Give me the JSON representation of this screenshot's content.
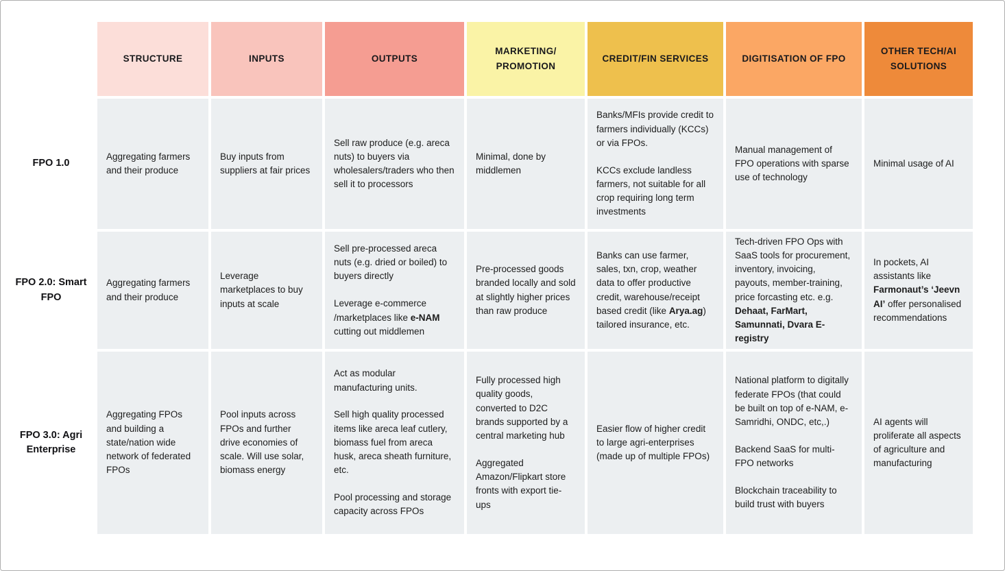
{
  "table": {
    "columns": [
      {
        "label": "STRUCTURE",
        "color": "#fcded9"
      },
      {
        "label": "INPUTS",
        "color": "#f9c4bc"
      },
      {
        "label": "OUTPUTS",
        "color": "#f59d92"
      },
      {
        "label": "MARKETING/\nPROMOTION",
        "color": "#faf3a6"
      },
      {
        "label": "CREDIT/FIN SERVICES",
        "color": "#eec04d"
      },
      {
        "label": "DIGITISATION OF FPO",
        "color": "#fba764"
      },
      {
        "label": "OTHER TECH/AI\nSOLUTIONS",
        "color": "#ee8a3a"
      }
    ],
    "rows": [
      {
        "label": "FPO 1.0",
        "cells": [
          [
            [
              {
                "t": "Aggregating farmers and their produce",
                "b": false
              }
            ]
          ],
          [
            [
              {
                "t": "Buy inputs from suppliers at fair prices",
                "b": false
              }
            ]
          ],
          [
            [
              {
                "t": "Sell raw produce (e.g. areca nuts) to buyers via wholesalers/traders who then sell it to processors",
                "b": false
              }
            ]
          ],
          [
            [
              {
                "t": "Minimal, done by middlemen",
                "b": false
              }
            ]
          ],
          [
            [
              {
                "t": "Banks/MFIs provide credit to farmers individually (KCCs) or via FPOs.",
                "b": false
              }
            ],
            [
              {
                "t": "KCCs exclude landless farmers, not suitable for all crop requiring long term investments",
                "b": false
              }
            ]
          ],
          [
            [
              {
                "t": "Manual management of FPO operations with sparse use of technology",
                "b": false
              }
            ]
          ],
          [
            [
              {
                "t": "Minimal usage of AI",
                "b": false
              }
            ]
          ]
        ]
      },
      {
        "label": "FPO 2.0: Smart FPO",
        "cells": [
          [
            [
              {
                "t": "Aggregating farmers and their produce",
                "b": false
              }
            ]
          ],
          [
            [
              {
                "t": "Leverage marketplaces to buy inputs at scale",
                "b": false
              }
            ]
          ],
          [
            [
              {
                "t": "Sell pre-processed areca nuts (e.g. dried or boiled) to buyers directly",
                "b": false
              }
            ],
            [
              {
                "t": "Leverage e-commerce /marketplaces like ",
                "b": false
              },
              {
                "t": "e-NAM",
                "b": true
              },
              {
                "t": " cutting out middlemen",
                "b": false
              }
            ]
          ],
          [
            [
              {
                "t": "Pre-processed goods branded locally and sold at slightly higher prices than raw produce",
                "b": false
              }
            ]
          ],
          [
            [
              {
                "t": "Banks can use farmer, sales, txn, crop, weather data to offer productive credit, warehouse/receipt based credit (like ",
                "b": false
              },
              {
                "t": "Arya.ag",
                "b": true
              },
              {
                "t": ") tailored insurance, etc.",
                "b": false
              }
            ]
          ],
          [
            [
              {
                "t": "Tech-driven FPO Ops with SaaS tools for procurement, inventory, invoicing, payouts, member-training, price forcasting etc. e.g. ",
                "b": false
              },
              {
                "t": "Dehaat, FarMart, Samunnati, Dvara E-registry",
                "b": true
              }
            ]
          ],
          [
            [
              {
                "t": "In pockets, AI assistants like ",
                "b": false
              },
              {
                "t": "Farmonaut’s ‘Jeevn AI’",
                "b": true
              },
              {
                "t": " offer personalised recommendations",
                "b": false
              }
            ]
          ]
        ]
      },
      {
        "label": "FPO 3.0: Agri Enterprise",
        "cells": [
          [
            [
              {
                "t": "Aggregating FPOs and building a state/nation wide network of federated FPOs",
                "b": false
              }
            ]
          ],
          [
            [
              {
                "t": "Pool inputs across FPOs and further drive economies of scale. Will use solar, biomass energy",
                "b": false
              }
            ]
          ],
          [
            [
              {
                "t": "Act as modular manufacturing units.",
                "b": false
              }
            ],
            [
              {
                "t": "Sell high quality processed items like areca leaf cutlery, biomass fuel from areca husk, areca sheath furniture, etc.",
                "b": false
              }
            ],
            [
              {
                "t": "Pool processing and storage capacity across FPOs",
                "b": false
              }
            ]
          ],
          [
            [
              {
                "t": "Fully processed high quality goods, converted to D2C brands supported by a central marketing hub",
                "b": false
              }
            ],
            [
              {
                "t": "Aggregated Amazon/Flipkart store fronts with export tie-ups",
                "b": false
              }
            ]
          ],
          [
            [
              {
                "t": "Easier flow of higher credit to large agri-enterprises (made up of multiple FPOs)",
                "b": false
              }
            ]
          ],
          [
            [
              {
                "t": "National platform to digitally federate FPOs (that could be built on top of e-NAM, e-Samridhi, ONDC, etc,.)",
                "b": false
              }
            ],
            [
              {
                "t": "Backend SaaS for multi-FPO networks",
                "b": false
              }
            ],
            [
              {
                "t": "Blockchain traceability to build trust with buyers",
                "b": false
              }
            ]
          ],
          [
            [
              {
                "t": "AI agents will proliferate all aspects of agriculture and manufacturing",
                "b": false
              }
            ]
          ]
        ]
      }
    ]
  }
}
